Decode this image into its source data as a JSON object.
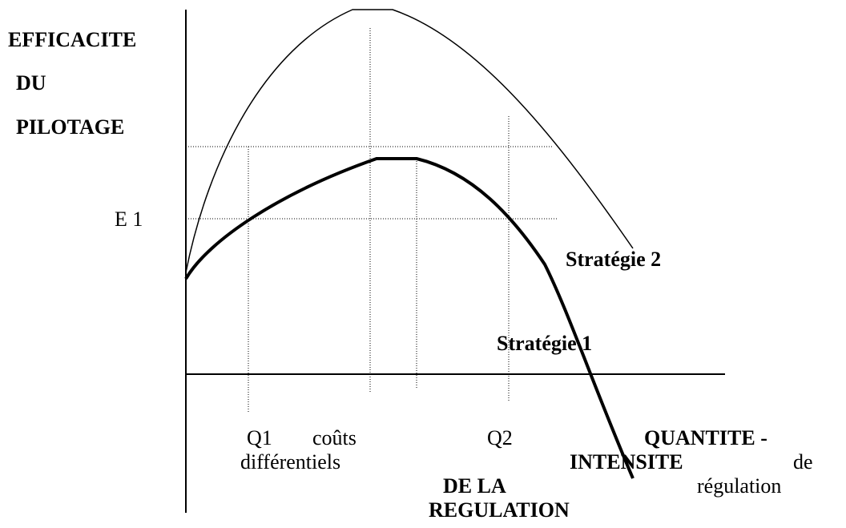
{
  "y_axis_label": [
    "EFFICACITE",
    "DU",
    "PILOTAGE"
  ],
  "e1": "E 1",
  "strategie_2": "Stratégie 2",
  "strategie_1": "Stratégie 1",
  "q1": "Q1",
  "couts": "coûts",
  "differentiels": "différentiels",
  "q2": "Q2",
  "quantite": "QUANTITE -",
  "intensite": "INTENSITE",
  "de": "de",
  "de_la": "DE LA",
  "regulation_bold": "REGULATION",
  "regulation": "régulation"
}
